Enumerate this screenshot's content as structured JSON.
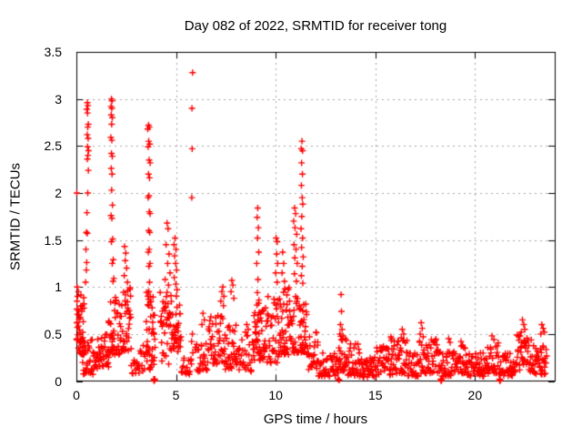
{
  "colors": {
    "marker": "#ff0000",
    "grid": "#a5a5a5",
    "axis": "#000000",
    "background": "#ffffff",
    "text": "#000000"
  },
  "chart_data": {
    "type": "scatter",
    "title": "Day 082 of 2022, SRMTID for receiver tong",
    "xlabel": "GPS time / hours",
    "ylabel": "SRMTID / TECUs",
    "xlim": [
      0,
      24
    ],
    "ylim": [
      0,
      3.5
    ],
    "xticks": [
      0,
      5,
      10,
      15,
      20
    ],
    "xtick_labels": [
      "0",
      "5",
      "10",
      "15",
      "20"
    ],
    "yticks": [
      0,
      0.5,
      1,
      1.5,
      2,
      2.5,
      3,
      3.5
    ],
    "ytick_labels": [
      "0",
      "0.5",
      "1",
      "1.5",
      "2",
      "2.5",
      "3",
      "3.5"
    ],
    "grid": true,
    "legend": "none",
    "marker": "plus",
    "points": [
      [
        0.55,
        2.96
      ],
      [
        0.58,
        2.93
      ],
      [
        0.52,
        2.89
      ],
      [
        0.56,
        2.85
      ],
      [
        0.6,
        2.73
      ],
      [
        0.57,
        2.7
      ],
      [
        0.54,
        2.62
      ],
      [
        0.59,
        2.58
      ],
      [
        0.56,
        2.49
      ],
      [
        0.61,
        2.45
      ],
      [
        0.58,
        2.4
      ],
      [
        0.55,
        2.36
      ],
      [
        0.6,
        2.24
      ],
      [
        0.57,
        2.0
      ],
      [
        0.53,
        1.79
      ],
      [
        0.5,
        1.58
      ],
      [
        0.55,
        1.57
      ],
      [
        0.48,
        1.4
      ],
      [
        0.52,
        1.26
      ],
      [
        0.5,
        1.18
      ],
      [
        0.46,
        1.05
      ],
      [
        0.02,
        2.0
      ],
      [
        0.04,
        1.0
      ],
      [
        0.1,
        0.95
      ],
      [
        0.06,
        0.9
      ],
      [
        0.03,
        0.85
      ],
      [
        0.02,
        0.62
      ],
      [
        0.05,
        0.57
      ],
      [
        1.76,
        3.0
      ],
      [
        1.79,
        2.98
      ],
      [
        1.74,
        2.92
      ],
      [
        1.78,
        2.9
      ],
      [
        1.75,
        2.83
      ],
      [
        1.8,
        2.8
      ],
      [
        1.77,
        2.73
      ],
      [
        1.73,
        2.59
      ],
      [
        1.78,
        2.56
      ],
      [
        1.76,
        2.42
      ],
      [
        1.8,
        2.39
      ],
      [
        1.75,
        2.26
      ],
      [
        1.79,
        2.2
      ],
      [
        1.77,
        2.03
      ],
      [
        1.81,
        1.87
      ],
      [
        1.74,
        1.76
      ],
      [
        1.78,
        1.73
      ],
      [
        1.82,
        1.51
      ],
      [
        1.76,
        1.48
      ],
      [
        1.85,
        1.29
      ],
      [
        1.8,
        1.25
      ],
      [
        1.88,
        1.09
      ],
      [
        1.84,
        1.06
      ],
      [
        2.42,
        1.43
      ],
      [
        2.48,
        1.36
      ],
      [
        2.45,
        1.28
      ],
      [
        2.52,
        1.2
      ],
      [
        2.4,
        1.12
      ],
      [
        2.56,
        1.05
      ],
      [
        3.62,
        2.72
      ],
      [
        3.66,
        2.7
      ],
      [
        3.58,
        2.68
      ],
      [
        3.63,
        2.55
      ],
      [
        3.68,
        2.52
      ],
      [
        3.6,
        2.49
      ],
      [
        3.65,
        2.35
      ],
      [
        3.7,
        2.32
      ],
      [
        3.62,
        2.2
      ],
      [
        3.67,
        2.16
      ],
      [
        3.64,
        1.97
      ],
      [
        3.6,
        1.95
      ],
      [
        3.66,
        1.8
      ],
      [
        3.7,
        1.78
      ],
      [
        3.63,
        1.6
      ],
      [
        3.68,
        1.58
      ],
      [
        3.65,
        1.4
      ],
      [
        3.61,
        1.37
      ],
      [
        3.69,
        1.25
      ],
      [
        3.64,
        1.22
      ],
      [
        3.67,
        1.05
      ],
      [
        3.62,
        0.87
      ],
      [
        3.7,
        0.84
      ],
      [
        3.88,
        0.02
      ],
      [
        3.91,
        0.01
      ],
      [
        3.94,
        0.02
      ],
      [
        3.9,
        0.0
      ],
      [
        4.55,
        1.68
      ],
      [
        4.6,
        1.62
      ],
      [
        4.5,
        1.45
      ],
      [
        4.65,
        1.35
      ],
      [
        4.58,
        1.25
      ],
      [
        4.7,
        1.15
      ],
      [
        4.45,
        1.08
      ],
      [
        4.62,
        1.02
      ],
      [
        4.95,
        1.52
      ],
      [
        4.9,
        1.45
      ],
      [
        5.0,
        1.4
      ],
      [
        4.93,
        1.33
      ],
      [
        4.98,
        1.25
      ],
      [
        5.03,
        1.18
      ],
      [
        4.91,
        1.1
      ],
      [
        4.99,
        1.03
      ],
      [
        5.05,
        0.97
      ],
      [
        5.83,
        3.28
      ],
      [
        5.8,
        2.9
      ],
      [
        5.81,
        2.47
      ],
      [
        5.79,
        1.95
      ],
      [
        5.82,
        0.5
      ],
      [
        5.78,
        0.42
      ],
      [
        5.84,
        0.3
      ],
      [
        6.35,
        0.72
      ],
      [
        6.42,
        0.65
      ],
      [
        6.3,
        0.6
      ],
      [
        7.35,
        1.0
      ],
      [
        7.3,
        0.95
      ],
      [
        7.4,
        0.9
      ],
      [
        7.25,
        0.85
      ],
      [
        7.38,
        0.8
      ],
      [
        7.8,
        1.07
      ],
      [
        7.85,
        1.02
      ],
      [
        7.76,
        0.95
      ],
      [
        7.9,
        0.88
      ],
      [
        8.55,
        0.6
      ],
      [
        8.62,
        0.55
      ],
      [
        8.48,
        0.52
      ],
      [
        9.1,
        1.84
      ],
      [
        9.07,
        1.74
      ],
      [
        9.13,
        1.63
      ],
      [
        9.09,
        1.52
      ],
      [
        9.15,
        1.37
      ],
      [
        9.05,
        1.25
      ],
      [
        9.11,
        1.08
      ],
      [
        9.08,
        0.94
      ],
      [
        9.16,
        0.86
      ],
      [
        10.02,
        1.52
      ],
      [
        10.08,
        1.48
      ],
      [
        10.05,
        1.35
      ],
      [
        10.1,
        1.25
      ],
      [
        10.0,
        1.15
      ],
      [
        10.07,
        1.05
      ],
      [
        10.35,
        1.37
      ],
      [
        10.4,
        1.25
      ],
      [
        10.32,
        1.15
      ],
      [
        10.44,
        1.06
      ],
      [
        10.95,
        1.84
      ],
      [
        11.0,
        1.78
      ],
      [
        10.9,
        1.7
      ],
      [
        10.97,
        1.63
      ],
      [
        11.05,
        1.56
      ],
      [
        10.92,
        1.45
      ],
      [
        11.02,
        1.4
      ],
      [
        10.96,
        1.31
      ],
      [
        11.08,
        1.25
      ],
      [
        10.94,
        1.14
      ],
      [
        11.04,
        1.06
      ],
      [
        11.32,
        2.55
      ],
      [
        11.28,
        2.47
      ],
      [
        11.35,
        2.45
      ],
      [
        11.3,
        2.32
      ],
      [
        11.34,
        2.2
      ],
      [
        11.29,
        2.08
      ],
      [
        11.33,
        1.95
      ],
      [
        11.36,
        1.88
      ],
      [
        11.31,
        1.75
      ],
      [
        11.27,
        1.62
      ],
      [
        11.35,
        1.52
      ],
      [
        11.3,
        1.42
      ],
      [
        11.38,
        1.32
      ],
      [
        11.33,
        1.22
      ],
      [
        11.29,
        1.12
      ],
      [
        11.36,
        1.04
      ],
      [
        13.28,
        0.92
      ],
      [
        13.3,
        0.74
      ],
      [
        13.25,
        0.6
      ],
      [
        13.33,
        0.55
      ],
      [
        13.22,
        0.5
      ],
      [
        13.13,
        0.02
      ],
      [
        13.19,
        0.01
      ],
      [
        15.78,
        0.47
      ],
      [
        15.82,
        0.45
      ],
      [
        15.8,
        0.43
      ],
      [
        16.35,
        0.55
      ],
      [
        16.42,
        0.5
      ],
      [
        16.3,
        0.46
      ],
      [
        17.3,
        0.62
      ],
      [
        17.35,
        0.56
      ],
      [
        17.25,
        0.5
      ],
      [
        17.4,
        0.47
      ],
      [
        18.28,
        0.02
      ],
      [
        18.32,
        0.01
      ],
      [
        18.3,
        0.0
      ],
      [
        18.68,
        0.45
      ],
      [
        18.75,
        0.41
      ],
      [
        19.3,
        0.42
      ],
      [
        19.38,
        0.38
      ],
      [
        20.85,
        0.48
      ],
      [
        20.95,
        0.44
      ],
      [
        21.23,
        0.02
      ],
      [
        21.27,
        0.01
      ],
      [
        21.25,
        0.0
      ],
      [
        22.38,
        0.65
      ],
      [
        22.45,
        0.6
      ],
      [
        22.5,
        0.55
      ],
      [
        22.32,
        0.52
      ],
      [
        23.35,
        0.6
      ],
      [
        23.42,
        0.56
      ],
      [
        23.3,
        0.5
      ],
      [
        23.48,
        0.52
      ]
    ],
    "bands": [
      [
        0.0,
        0.4,
        30,
        0.4,
        0.95
      ],
      [
        0.1,
        0.45,
        12,
        0.28,
        0.42
      ],
      [
        0.3,
        1.25,
        48,
        0.07,
        0.45
      ],
      [
        1.25,
        1.65,
        22,
        0.15,
        0.5
      ],
      [
        1.6,
        2.2,
        45,
        0.28,
        0.95
      ],
      [
        2.2,
        2.75,
        42,
        0.32,
        1.0
      ],
      [
        2.75,
        3.5,
        24,
        0.08,
        0.38
      ],
      [
        3.5,
        3.95,
        42,
        0.12,
        1.0
      ],
      [
        4.2,
        4.85,
        45,
        0.18,
        0.95
      ],
      [
        4.85,
        5.25,
        30,
        0.3,
        0.92
      ],
      [
        5.25,
        5.8,
        18,
        0.07,
        0.25
      ],
      [
        5.95,
        6.6,
        26,
        0.1,
        0.45
      ],
      [
        6.6,
        7.45,
        45,
        0.18,
        0.72
      ],
      [
        7.45,
        8.05,
        32,
        0.12,
        0.6
      ],
      [
        8.05,
        8.85,
        30,
        0.1,
        0.5
      ],
      [
        8.85,
        9.35,
        42,
        0.22,
        0.85
      ],
      [
        9.35,
        10.15,
        45,
        0.18,
        0.9
      ],
      [
        10.15,
        10.7,
        42,
        0.28,
        1.0
      ],
      [
        10.7,
        11.2,
        32,
        0.3,
        0.9
      ],
      [
        11.2,
        11.55,
        30,
        0.3,
        0.9
      ],
      [
        11.55,
        12.15,
        30,
        0.12,
        0.52
      ],
      [
        12.15,
        13.15,
        48,
        0.05,
        0.3
      ],
      [
        13.15,
        13.55,
        26,
        0.1,
        0.48
      ],
      [
        13.55,
        14.2,
        32,
        0.06,
        0.4
      ],
      [
        14.2,
        15.0,
        40,
        0.04,
        0.26
      ],
      [
        15.0,
        15.95,
        45,
        0.06,
        0.38
      ],
      [
        15.95,
        16.6,
        32,
        0.08,
        0.45
      ],
      [
        16.6,
        17.2,
        30,
        0.05,
        0.3
      ],
      [
        17.2,
        18.2,
        48,
        0.08,
        0.45
      ],
      [
        18.2,
        19.2,
        48,
        0.05,
        0.32
      ],
      [
        19.2,
        19.6,
        20,
        0.08,
        0.38
      ],
      [
        19.6,
        20.6,
        48,
        0.05,
        0.3
      ],
      [
        20.6,
        21.2,
        30,
        0.08,
        0.42
      ],
      [
        21.2,
        22.1,
        45,
        0.05,
        0.3
      ],
      [
        22.1,
        22.9,
        42,
        0.1,
        0.5
      ],
      [
        22.9,
        23.6,
        36,
        0.07,
        0.38
      ]
    ]
  }
}
